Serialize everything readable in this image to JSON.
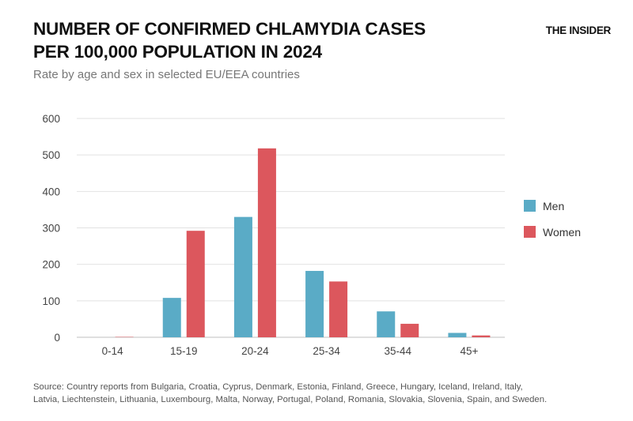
{
  "header": {
    "title_line1": "NUMBER OF CONFIRMED CHLAMYDIA CASES",
    "title_line2": "PER 100,000 POPULATION IN 2024",
    "subtitle": "Rate by age and sex in selected EU/EEA countries",
    "brand": "THE INSIDER"
  },
  "colors": {
    "men": "#5aabc6",
    "women": "#dc575d",
    "grid": "#e2e2e2",
    "axis": "#cccccc",
    "tick_text": "#444444"
  },
  "chart_data": {
    "type": "bar",
    "title": "NUMBER OF CONFIRMED CHLAMYDIA CASES PER 100,000 POPULATION IN 2024",
    "subtitle": "Rate by age and sex in selected EU/EEA countries",
    "categories": [
      "0-14",
      "15-19",
      "20-24",
      "25-34",
      "35-44",
      "45+"
    ],
    "series": [
      {
        "name": "Men",
        "color": "#5aabc6",
        "values": [
          0,
          108,
          330,
          182,
          71,
          12
        ]
      },
      {
        "name": "Women",
        "color": "#dc575d",
        "values": [
          1,
          292,
          518,
          153,
          37,
          5
        ]
      }
    ],
    "xlabel": "",
    "ylabel": "",
    "ylim": [
      0,
      600
    ],
    "yticks": [
      0,
      100,
      200,
      300,
      400,
      500,
      600
    ],
    "grid": true,
    "legend_position": "right"
  },
  "legend": {
    "items": [
      {
        "label": "Men",
        "color": "#5aabc6"
      },
      {
        "label": "Women",
        "color": "#dc575d"
      }
    ]
  },
  "footer": {
    "source_line1": "Source: Country reports from Bulgaria, Croatia, Cyprus, Denmark, Estonia, Finland, Greece, Hungary, Iceland, Ireland, Italy,",
    "source_line2": "Latvia, Liechtenstein, Lithuania, Luxembourg, Malta, Norway, Portugal, Poland, Romania, Slovakia, Slovenia, Spain, and Sweden."
  }
}
